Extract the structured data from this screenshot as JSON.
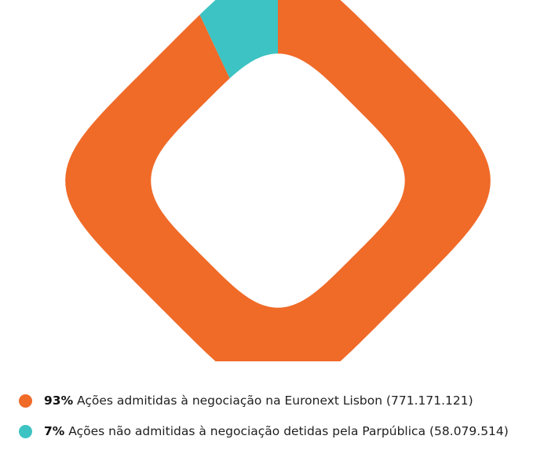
{
  "chart_data": {
    "type": "pie",
    "donut": true,
    "title": "",
    "slices": [
      {
        "percent_label": "93%",
        "label": "Ações admitidas à negociação na Euronext Lisbon (771.171.121)",
        "value": 771171121,
        "color": "#f06a28"
      },
      {
        "percent_label": "7%",
        "label": "Ações não admitidas à negociação detidas pela Parpública (58.079.514)",
        "value": 58079514,
        "color": "#3dc3c3"
      }
    ],
    "legend_position": "bottom-left"
  }
}
